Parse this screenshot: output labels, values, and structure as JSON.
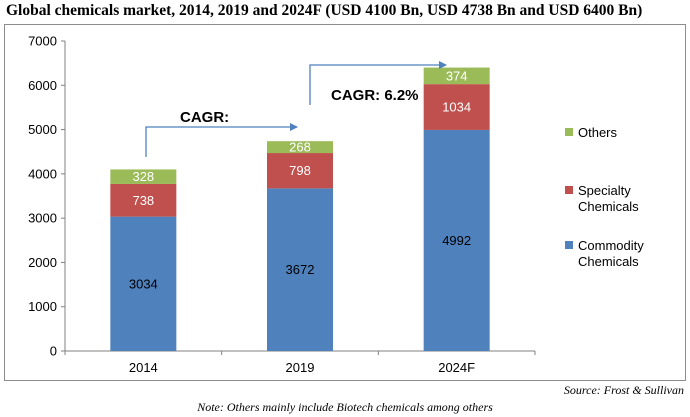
{
  "title": "Global chemicals market, 2014, 2019 and 2024F (USD 4100 Bn, USD 4738 Bn and USD 6400 Bn)",
  "source": "Source: Frost & Sullivan",
  "note": "Note: Others mainly include Biotech chemicals among others",
  "annotations": {
    "cagr_first": "CAGR:",
    "cagr_second": "CAGR: 6.2%"
  },
  "legend": [
    {
      "label": "Others",
      "color": "#9bbb59"
    },
    {
      "label": "Specialty Chemicals",
      "color": "#c0504d"
    },
    {
      "label": "Commodity Chemicals",
      "color": "#4f81bd"
    }
  ],
  "chart_data": {
    "type": "bar",
    "stacked": true,
    "categories": [
      "2014",
      "2019",
      "2024F"
    ],
    "series": [
      {
        "name": "Commodity Chemicals",
        "color": "#4f81bd",
        "values": [
          3034,
          3672,
          4992
        ]
      },
      {
        "name": "Specialty Chemicals",
        "color": "#c0504d",
        "values": [
          738,
          798,
          1034
        ]
      },
      {
        "name": "Others",
        "color": "#9bbb59",
        "values": [
          328,
          268,
          374
        ]
      }
    ],
    "ylim": [
      0,
      7000
    ],
    "yticks": [
      0,
      1000,
      2000,
      3000,
      4000,
      5000,
      6000,
      7000
    ],
    "grid": false,
    "legend_position": "right"
  }
}
